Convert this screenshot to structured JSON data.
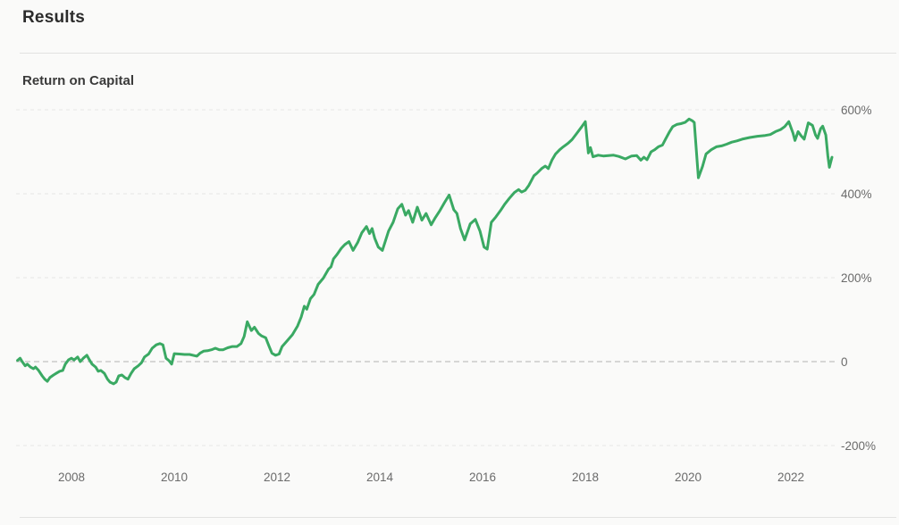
{
  "header": {
    "title": "Results"
  },
  "chart": {
    "title": "Return on Capital"
  },
  "chart_data": {
    "type": "line",
    "title": "Return on Capital",
    "xlabel": "",
    "ylabel": "",
    "x_unit": "year",
    "y_unit": "percent",
    "xlim": [
      2006.9,
      2022.9
    ],
    "ylim": [
      -220,
      630
    ],
    "grid": "horizontal-dashed",
    "legend": "none",
    "grid_color": "#e6e6e5",
    "zero_line_color": "#b1b1b1",
    "x_ticks": [
      2008,
      2010,
      2012,
      2014,
      2016,
      2018,
      2020,
      2022
    ],
    "y_ticks": [
      {
        "value": 600,
        "label": "600%"
      },
      {
        "value": 400,
        "label": "400%"
      },
      {
        "value": 200,
        "label": "200%"
      },
      {
        "value": 0,
        "label": "0"
      },
      {
        "value": -200,
        "label": "-200%"
      }
    ],
    "series": [
      {
        "name": "Return on Capital",
        "color": "#3aa963",
        "points": [
          [
            2006.95,
            3
          ],
          [
            2007.0,
            8
          ],
          [
            2007.04,
            0
          ],
          [
            2007.1,
            -10
          ],
          [
            2007.14,
            -6
          ],
          [
            2007.2,
            -13
          ],
          [
            2007.26,
            -17
          ],
          [
            2007.3,
            -13
          ],
          [
            2007.36,
            -21
          ],
          [
            2007.43,
            -34
          ],
          [
            2007.48,
            -42
          ],
          [
            2007.53,
            -47
          ],
          [
            2007.58,
            -38
          ],
          [
            2007.65,
            -32
          ],
          [
            2007.7,
            -28
          ],
          [
            2007.77,
            -23
          ],
          [
            2007.83,
            -21
          ],
          [
            2007.88,
            -6
          ],
          [
            2007.94,
            4
          ],
          [
            2008.0,
            8
          ],
          [
            2008.05,
            4
          ],
          [
            2008.12,
            11
          ],
          [
            2008.17,
            0
          ],
          [
            2008.23,
            8
          ],
          [
            2008.3,
            15
          ],
          [
            2008.35,
            4
          ],
          [
            2008.4,
            -6
          ],
          [
            2008.47,
            -13
          ],
          [
            2008.52,
            -23
          ],
          [
            2008.57,
            -21
          ],
          [
            2008.64,
            -28
          ],
          [
            2008.7,
            -42
          ],
          [
            2008.75,
            -49
          ],
          [
            2008.82,
            -53
          ],
          [
            2008.87,
            -49
          ],
          [
            2008.92,
            -34
          ],
          [
            2008.98,
            -32
          ],
          [
            2009.04,
            -38
          ],
          [
            2009.1,
            -42
          ],
          [
            2009.16,
            -28
          ],
          [
            2009.22,
            -17
          ],
          [
            2009.3,
            -10
          ],
          [
            2009.36,
            -3
          ],
          [
            2009.42,
            11
          ],
          [
            2009.5,
            18
          ],
          [
            2009.57,
            32
          ],
          [
            2009.65,
            40
          ],
          [
            2009.72,
            43
          ],
          [
            2009.78,
            40
          ],
          [
            2009.84,
            8
          ],
          [
            2009.9,
            2
          ],
          [
            2009.95,
            -6
          ],
          [
            2010.0,
            19
          ],
          [
            2010.1,
            18
          ],
          [
            2010.2,
            17
          ],
          [
            2010.3,
            17
          ],
          [
            2010.44,
            13
          ],
          [
            2010.5,
            20
          ],
          [
            2010.57,
            25
          ],
          [
            2010.65,
            26
          ],
          [
            2010.74,
            29
          ],
          [
            2010.8,
            32
          ],
          [
            2010.88,
            28
          ],
          [
            2010.95,
            28
          ],
          [
            2011.04,
            33
          ],
          [
            2011.13,
            36
          ],
          [
            2011.22,
            36
          ],
          [
            2011.3,
            43
          ],
          [
            2011.36,
            60
          ],
          [
            2011.42,
            95
          ],
          [
            2011.5,
            74
          ],
          [
            2011.56,
            82
          ],
          [
            2011.64,
            67
          ],
          [
            2011.7,
            61
          ],
          [
            2011.78,
            57
          ],
          [
            2011.85,
            35
          ],
          [
            2011.9,
            20
          ],
          [
            2011.97,
            15
          ],
          [
            2012.04,
            18
          ],
          [
            2012.1,
            36
          ],
          [
            2012.2,
            50
          ],
          [
            2012.3,
            64
          ],
          [
            2012.4,
            85
          ],
          [
            2012.47,
            106
          ],
          [
            2012.53,
            132
          ],
          [
            2012.58,
            125
          ],
          [
            2012.65,
            150
          ],
          [
            2012.72,
            160
          ],
          [
            2012.8,
            184
          ],
          [
            2012.9,
            199
          ],
          [
            2013.0,
            220
          ],
          [
            2013.05,
            226
          ],
          [
            2013.1,
            245
          ],
          [
            2013.16,
            254
          ],
          [
            2013.25,
            270
          ],
          [
            2013.32,
            279
          ],
          [
            2013.4,
            286
          ],
          [
            2013.48,
            265
          ],
          [
            2013.57,
            284
          ],
          [
            2013.65,
            307
          ],
          [
            2013.74,
            322
          ],
          [
            2013.8,
            305
          ],
          [
            2013.85,
            317
          ],
          [
            2013.9,
            294
          ],
          [
            2013.97,
            273
          ],
          [
            2014.05,
            265
          ],
          [
            2014.17,
            311
          ],
          [
            2014.26,
            332
          ],
          [
            2014.35,
            364
          ],
          [
            2014.43,
            375
          ],
          [
            2014.5,
            349
          ],
          [
            2014.56,
            360
          ],
          [
            2014.64,
            332
          ],
          [
            2014.73,
            368
          ],
          [
            2014.82,
            337
          ],
          [
            2014.9,
            353
          ],
          [
            2015.0,
            326
          ],
          [
            2015.08,
            343
          ],
          [
            2015.17,
            360
          ],
          [
            2015.26,
            379
          ],
          [
            2015.35,
            397
          ],
          [
            2015.44,
            362
          ],
          [
            2015.5,
            353
          ],
          [
            2015.57,
            317
          ],
          [
            2015.65,
            290
          ],
          [
            2015.76,
            328
          ],
          [
            2015.86,
            339
          ],
          [
            2015.95,
            311
          ],
          [
            2016.03,
            273
          ],
          [
            2016.09,
            268
          ],
          [
            2016.17,
            332
          ],
          [
            2016.26,
            345
          ],
          [
            2016.35,
            360
          ],
          [
            2016.43,
            375
          ],
          [
            2016.52,
            389
          ],
          [
            2016.62,
            403
          ],
          [
            2016.7,
            410
          ],
          [
            2016.76,
            404
          ],
          [
            2016.83,
            408
          ],
          [
            2016.9,
            420
          ],
          [
            2017.0,
            443
          ],
          [
            2017.06,
            449
          ],
          [
            2017.15,
            460
          ],
          [
            2017.22,
            466
          ],
          [
            2017.28,
            460
          ],
          [
            2017.35,
            480
          ],
          [
            2017.42,
            495
          ],
          [
            2017.5,
            505
          ],
          [
            2017.57,
            512
          ],
          [
            2017.66,
            520
          ],
          [
            2017.74,
            529
          ],
          [
            2017.84,
            545
          ],
          [
            2017.92,
            558
          ],
          [
            2018.0,
            572
          ],
          [
            2018.06,
            497
          ],
          [
            2018.1,
            510
          ],
          [
            2018.15,
            488
          ],
          [
            2018.25,
            492
          ],
          [
            2018.35,
            490
          ],
          [
            2018.45,
            491
          ],
          [
            2018.55,
            492
          ],
          [
            2018.65,
            489
          ],
          [
            2018.78,
            483
          ],
          [
            2018.9,
            490
          ],
          [
            2019.0,
            491
          ],
          [
            2019.08,
            480
          ],
          [
            2019.14,
            487
          ],
          [
            2019.2,
            481
          ],
          [
            2019.28,
            500
          ],
          [
            2019.35,
            505
          ],
          [
            2019.42,
            512
          ],
          [
            2019.5,
            516
          ],
          [
            2019.56,
            530
          ],
          [
            2019.64,
            548
          ],
          [
            2019.7,
            560
          ],
          [
            2019.78,
            565
          ],
          [
            2019.86,
            567
          ],
          [
            2019.94,
            570
          ],
          [
            2020.02,
            578
          ],
          [
            2020.08,
            574
          ],
          [
            2020.12,
            570
          ],
          [
            2020.2,
            438
          ],
          [
            2020.28,
            465
          ],
          [
            2020.35,
            495
          ],
          [
            2020.45,
            505
          ],
          [
            2020.55,
            512
          ],
          [
            2020.65,
            514
          ],
          [
            2020.75,
            518
          ],
          [
            2020.85,
            523
          ],
          [
            2020.95,
            526
          ],
          [
            2021.05,
            530
          ],
          [
            2021.2,
            534
          ],
          [
            2021.35,
            537
          ],
          [
            2021.5,
            539
          ],
          [
            2021.6,
            541
          ],
          [
            2021.7,
            548
          ],
          [
            2021.8,
            553
          ],
          [
            2021.88,
            560
          ],
          [
            2021.96,
            572
          ],
          [
            2022.04,
            545
          ],
          [
            2022.08,
            527
          ],
          [
            2022.14,
            548
          ],
          [
            2022.2,
            538
          ],
          [
            2022.26,
            530
          ],
          [
            2022.34,
            569
          ],
          [
            2022.42,
            563
          ],
          [
            2022.48,
            540
          ],
          [
            2022.52,
            532
          ],
          [
            2022.58,
            555
          ],
          [
            2022.62,
            561
          ],
          [
            2022.68,
            540
          ],
          [
            2022.72,
            490
          ],
          [
            2022.75,
            463
          ],
          [
            2022.8,
            487
          ]
        ]
      }
    ]
  }
}
